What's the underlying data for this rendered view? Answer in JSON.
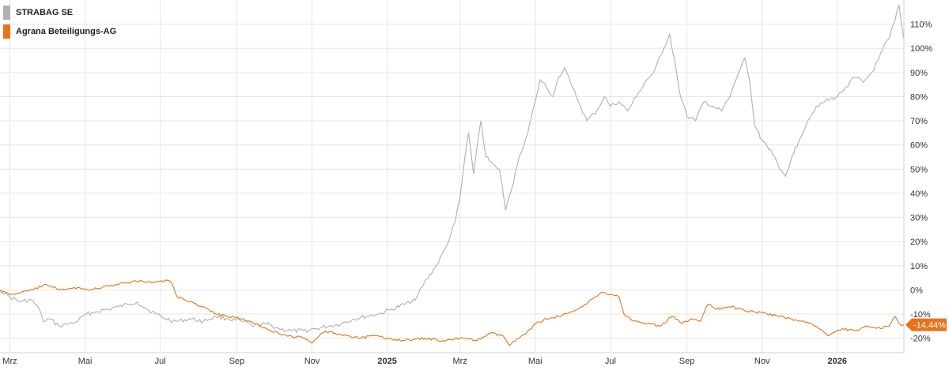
{
  "chart_data": {
    "type": "line",
    "title": "",
    "xlabel": "",
    "ylabel": "",
    "ylim": [
      -26,
      120
    ],
    "y_ticks": [
      110,
      100,
      90,
      80,
      70,
      60,
      50,
      40,
      30,
      20,
      10,
      0,
      -10,
      -20
    ],
    "y_tick_labels": [
      "110%",
      "100%",
      "90%",
      "80%",
      "70%",
      "60%",
      "50%",
      "40%",
      "30%",
      "20%",
      "10%",
      "0%",
      "-10%",
      "-20%"
    ],
    "y_axis_side": "right",
    "x_range": [
      "2024-02-22",
      "2026-02-24"
    ],
    "x_ticks": [
      {
        "date": "2024-03-01",
        "label": "Mrz",
        "bold": false
      },
      {
        "date": "2024-05-01",
        "label": "Mai",
        "bold": false
      },
      {
        "date": "2024-07-01",
        "label": "Jul",
        "bold": false
      },
      {
        "date": "2024-09-01",
        "label": "Sep",
        "bold": false
      },
      {
        "date": "2024-11-01",
        "label": "Nov",
        "bold": false
      },
      {
        "date": "2025-01-01",
        "label": "2025",
        "bold": true
      },
      {
        "date": "2025-03-01",
        "label": "Mrz",
        "bold": false
      },
      {
        "date": "2025-05-01",
        "label": "Mai",
        "bold": false
      },
      {
        "date": "2025-07-01",
        "label": "Jul",
        "bold": false
      },
      {
        "date": "2025-09-01",
        "label": "Sep",
        "bold": false
      },
      {
        "date": "2025-11-01",
        "label": "Nov",
        "bold": false
      },
      {
        "date": "2026-01-01",
        "label": "2026",
        "bold": true
      }
    ],
    "grid": true,
    "legend_position": "top-left",
    "series": [
      {
        "name": "STRABAG SE",
        "color": "#b0b0b0",
        "points": [
          [
            "2024-02-22",
            0
          ],
          [
            "2024-03-01",
            -3
          ],
          [
            "2024-03-10",
            -5
          ],
          [
            "2024-03-18",
            -4
          ],
          [
            "2024-03-25",
            -8
          ],
          [
            "2024-03-28",
            -13
          ],
          [
            "2024-04-02",
            -12
          ],
          [
            "2024-04-10",
            -15
          ],
          [
            "2024-04-18",
            -14
          ],
          [
            "2024-04-25",
            -13
          ],
          [
            "2024-05-02",
            -10
          ],
          [
            "2024-05-10",
            -9
          ],
          [
            "2024-05-20",
            -8
          ],
          [
            "2024-05-28",
            -7
          ],
          [
            "2024-06-05",
            -6
          ],
          [
            "2024-06-12",
            -5
          ],
          [
            "2024-06-20",
            -8
          ],
          [
            "2024-06-28",
            -10
          ],
          [
            "2024-07-05",
            -12
          ],
          [
            "2024-07-15",
            -13
          ],
          [
            "2024-07-25",
            -12
          ],
          [
            "2024-08-05",
            -13
          ],
          [
            "2024-08-15",
            -11
          ],
          [
            "2024-08-25",
            -12
          ],
          [
            "2024-09-05",
            -13
          ],
          [
            "2024-09-15",
            -15
          ],
          [
            "2024-09-25",
            -14
          ],
          [
            "2024-10-05",
            -16
          ],
          [
            "2024-10-15",
            -17
          ],
          [
            "2024-10-25",
            -17
          ],
          [
            "2024-11-05",
            -16
          ],
          [
            "2024-11-15",
            -15
          ],
          [
            "2024-11-25",
            -14
          ],
          [
            "2024-12-05",
            -12
          ],
          [
            "2024-12-15",
            -11
          ],
          [
            "2024-12-25",
            -10
          ],
          [
            "2025-01-05",
            -8
          ],
          [
            "2025-01-15",
            -6
          ],
          [
            "2025-01-25",
            -3
          ],
          [
            "2025-01-31",
            3
          ],
          [
            "2025-02-10",
            10
          ],
          [
            "2025-02-18",
            18
          ],
          [
            "2025-02-25",
            28
          ],
          [
            "2025-03-01",
            38
          ],
          [
            "2025-03-05",
            55
          ],
          [
            "2025-03-08",
            65
          ],
          [
            "2025-03-12",
            48
          ],
          [
            "2025-03-15",
            60
          ],
          [
            "2025-03-18",
            70
          ],
          [
            "2025-03-22",
            55
          ],
          [
            "2025-03-28",
            52
          ],
          [
            "2025-04-02",
            50
          ],
          [
            "2025-04-07",
            33
          ],
          [
            "2025-04-12",
            42
          ],
          [
            "2025-04-18",
            55
          ],
          [
            "2025-04-25",
            65
          ],
          [
            "2025-05-01",
            78
          ],
          [
            "2025-05-05",
            87
          ],
          [
            "2025-05-10",
            84
          ],
          [
            "2025-05-15",
            80
          ],
          [
            "2025-05-20",
            88
          ],
          [
            "2025-05-25",
            92
          ],
          [
            "2025-05-30",
            85
          ],
          [
            "2025-06-05",
            78
          ],
          [
            "2025-06-12",
            70
          ],
          [
            "2025-06-20",
            74
          ],
          [
            "2025-06-26",
            80
          ],
          [
            "2025-07-01",
            76
          ],
          [
            "2025-07-08",
            78
          ],
          [
            "2025-07-15",
            74
          ],
          [
            "2025-07-22",
            80
          ],
          [
            "2025-07-29",
            86
          ],
          [
            "2025-08-05",
            90
          ],
          [
            "2025-08-12",
            98
          ],
          [
            "2025-08-18",
            106
          ],
          [
            "2025-08-22",
            95
          ],
          [
            "2025-08-26",
            82
          ],
          [
            "2025-09-01",
            72
          ],
          [
            "2025-09-08",
            70
          ],
          [
            "2025-09-15",
            78
          ],
          [
            "2025-09-22",
            76
          ],
          [
            "2025-09-29",
            74
          ],
          [
            "2025-10-06",
            80
          ],
          [
            "2025-10-13",
            90
          ],
          [
            "2025-10-18",
            96
          ],
          [
            "2025-10-22",
            86
          ],
          [
            "2025-10-26",
            68
          ],
          [
            "2025-11-01",
            62
          ],
          [
            "2025-11-08",
            58
          ],
          [
            "2025-11-15",
            50
          ],
          [
            "2025-11-20",
            47
          ],
          [
            "2025-11-25",
            55
          ],
          [
            "2025-12-01",
            62
          ],
          [
            "2025-12-08",
            70
          ],
          [
            "2025-12-15",
            76
          ],
          [
            "2025-12-22",
            78
          ],
          [
            "2026-01-01",
            80
          ],
          [
            "2026-01-08",
            84
          ],
          [
            "2026-01-15",
            88
          ],
          [
            "2026-01-22",
            86
          ],
          [
            "2026-01-29",
            90
          ],
          [
            "2026-02-03",
            95
          ],
          [
            "2026-02-07",
            100
          ],
          [
            "2026-02-12",
            104
          ],
          [
            "2026-02-17",
            112
          ],
          [
            "2026-02-20",
            118
          ],
          [
            "2026-02-22",
            110
          ],
          [
            "2026-02-24",
            104
          ]
        ]
      },
      {
        "name": "Agrana Beteiligungs-AG",
        "color": "#e8731a",
        "last_value_label": "-14.44%",
        "points": [
          [
            "2024-02-22",
            0
          ],
          [
            "2024-03-01",
            -2
          ],
          [
            "2024-03-10",
            -1
          ],
          [
            "2024-03-20",
            0
          ],
          [
            "2024-03-28",
            2
          ],
          [
            "2024-04-05",
            1
          ],
          [
            "2024-04-15",
            0
          ],
          [
            "2024-04-25",
            1
          ],
          [
            "2024-05-05",
            0
          ],
          [
            "2024-05-15",
            1
          ],
          [
            "2024-05-25",
            2
          ],
          [
            "2024-06-05",
            3
          ],
          [
            "2024-06-15",
            4
          ],
          [
            "2024-06-25",
            3
          ],
          [
            "2024-07-05",
            4
          ],
          [
            "2024-07-10",
            3
          ],
          [
            "2024-07-15",
            -3
          ],
          [
            "2024-07-25",
            -5
          ],
          [
            "2024-08-05",
            -7
          ],
          [
            "2024-08-15",
            -10
          ],
          [
            "2024-08-25",
            -11
          ],
          [
            "2024-09-05",
            -12
          ],
          [
            "2024-09-15",
            -14
          ],
          [
            "2024-09-25",
            -16
          ],
          [
            "2024-10-05",
            -18
          ],
          [
            "2024-10-15",
            -19
          ],
          [
            "2024-10-25",
            -20
          ],
          [
            "2024-11-01",
            -22
          ],
          [
            "2024-11-05",
            -20
          ],
          [
            "2024-11-12",
            -17
          ],
          [
            "2024-11-20",
            -18
          ],
          [
            "2024-12-01",
            -19
          ],
          [
            "2024-12-10",
            -20
          ],
          [
            "2024-12-20",
            -19
          ],
          [
            "2025-01-01",
            -20
          ],
          [
            "2025-01-15",
            -21
          ],
          [
            "2025-02-01",
            -20
          ],
          [
            "2025-02-15",
            -21
          ],
          [
            "2025-03-01",
            -20
          ],
          [
            "2025-03-15",
            -21
          ],
          [
            "2025-03-25",
            -18
          ],
          [
            "2025-04-05",
            -19
          ],
          [
            "2025-04-10",
            -23
          ],
          [
            "2025-04-18",
            -20
          ],
          [
            "2025-04-25",
            -17
          ],
          [
            "2025-05-01",
            -14
          ],
          [
            "2025-05-10",
            -12
          ],
          [
            "2025-05-20",
            -11
          ],
          [
            "2025-06-01",
            -9
          ],
          [
            "2025-06-10",
            -6
          ],
          [
            "2025-06-18",
            -3
          ],
          [
            "2025-06-25",
            -1
          ],
          [
            "2025-07-01",
            -2
          ],
          [
            "2025-07-08",
            -3
          ],
          [
            "2025-07-12",
            -10
          ],
          [
            "2025-07-20",
            -13
          ],
          [
            "2025-08-01",
            -14
          ],
          [
            "2025-08-10",
            -15
          ],
          [
            "2025-08-20",
            -11
          ],
          [
            "2025-08-28",
            -14
          ],
          [
            "2025-09-05",
            -12
          ],
          [
            "2025-09-12",
            -13
          ],
          [
            "2025-09-18",
            -6
          ],
          [
            "2025-09-25",
            -8
          ],
          [
            "2025-10-05",
            -7
          ],
          [
            "2025-10-15",
            -8
          ],
          [
            "2025-10-25",
            -9
          ],
          [
            "2025-11-05",
            -10
          ],
          [
            "2025-11-15",
            -11
          ],
          [
            "2025-11-25",
            -12
          ],
          [
            "2025-12-05",
            -13
          ],
          [
            "2025-12-15",
            -15
          ],
          [
            "2025-12-25",
            -19
          ],
          [
            "2026-01-05",
            -16
          ],
          [
            "2026-01-15",
            -17
          ],
          [
            "2026-01-25",
            -15
          ],
          [
            "2026-02-05",
            -16
          ],
          [
            "2026-02-12",
            -15
          ],
          [
            "2026-02-17",
            -11
          ],
          [
            "2026-02-20",
            -14
          ],
          [
            "2026-02-24",
            -14.44
          ]
        ]
      }
    ]
  }
}
